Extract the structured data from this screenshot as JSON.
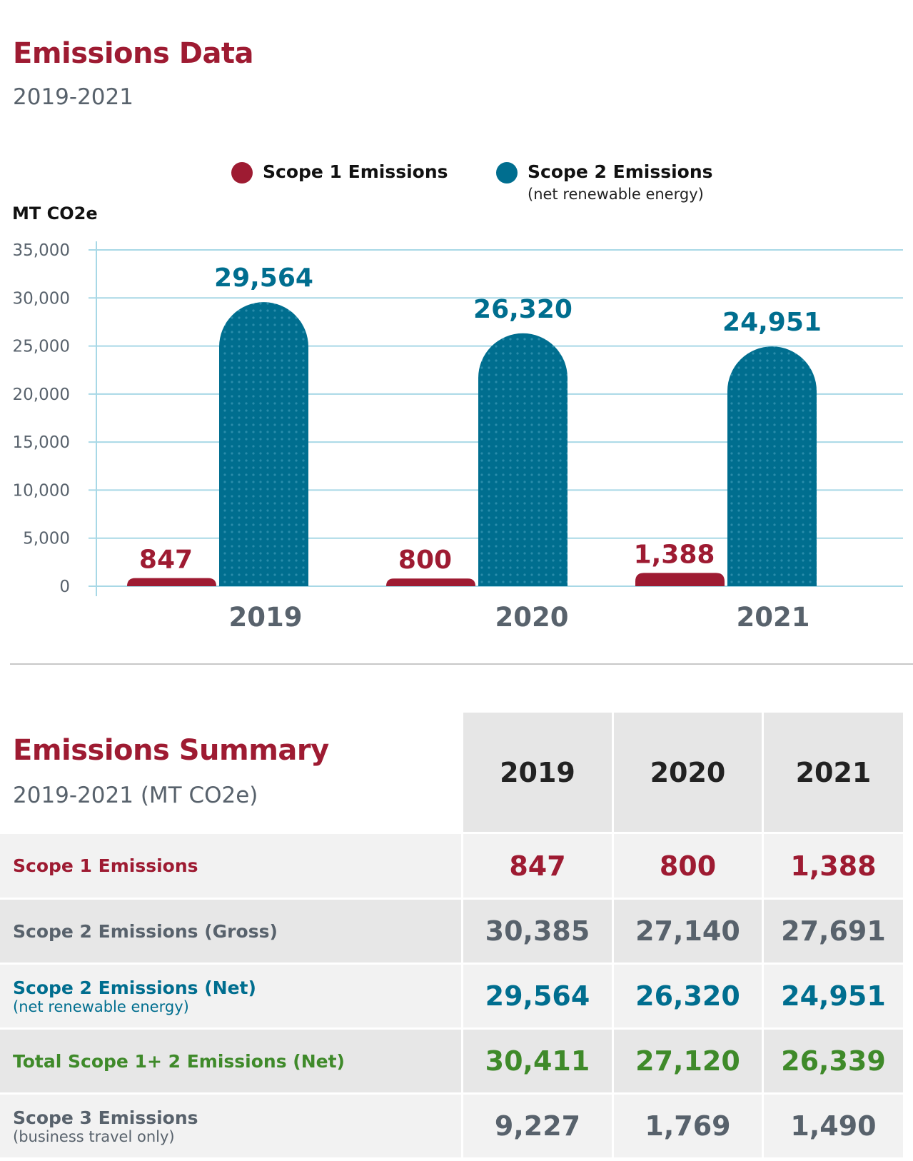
{
  "header": {
    "title": "Emissions Data",
    "subtitle": "2019-2021"
  },
  "colors": {
    "scope1": "#9e1b32",
    "scope2": "#006e8f",
    "gross": "#58626c",
    "total": "#3f8a2a",
    "grid": "#a8d8e6"
  },
  "chart_data": {
    "type": "bar",
    "ylabel": "MT CO2e",
    "categories": [
      "2019",
      "2020",
      "2021"
    ],
    "ylim": [
      0,
      35000
    ],
    "yticks": [
      "0",
      "5,000",
      "10,000",
      "15,000",
      "20,000",
      "25,000",
      "30,000",
      "35,000"
    ],
    "grid": true,
    "legend_position": "top",
    "series": [
      {
        "name": "Scope 1 Emissions",
        "values": [
          847,
          800,
          1388
        ],
        "labels": [
          "847",
          "800",
          "1,388"
        ]
      },
      {
        "name": "Scope 2 Emissions",
        "note": "(net renewable energy)",
        "values": [
          29564,
          26320,
          24951
        ],
        "labels": [
          "29,564",
          "26,320",
          "24,951"
        ]
      }
    ]
  },
  "summary": {
    "title": "Emissions Summary",
    "subtitle": "2019-2021 (MT CO2e)",
    "years": [
      "2019",
      "2020",
      "2021"
    ],
    "rows": [
      {
        "label": "Scope 1 Emissions",
        "note": "",
        "values": [
          "847",
          "800",
          "1,388"
        ],
        "color": "#9e1b32"
      },
      {
        "label": "Scope 2 Emissions (Gross)",
        "note": "",
        "values": [
          "30,385",
          "27,140",
          "27,691"
        ],
        "color": "#58626c"
      },
      {
        "label": "Scope 2 Emissions (Net)",
        "note": "(net renewable energy)",
        "values": [
          "29,564",
          "26,320",
          "24,951"
        ],
        "color": "#006e8f"
      },
      {
        "label": "Total Scope 1+ 2 Emissions (Net)",
        "note": "",
        "values": [
          "30,411",
          "27,120",
          "26,339"
        ],
        "color": "#3f8a2a"
      },
      {
        "label": "Scope 3 Emissions",
        "note": "(business travel only)",
        "values": [
          "9,227",
          "1,769",
          "1,490"
        ],
        "color": "#58626c"
      }
    ]
  }
}
